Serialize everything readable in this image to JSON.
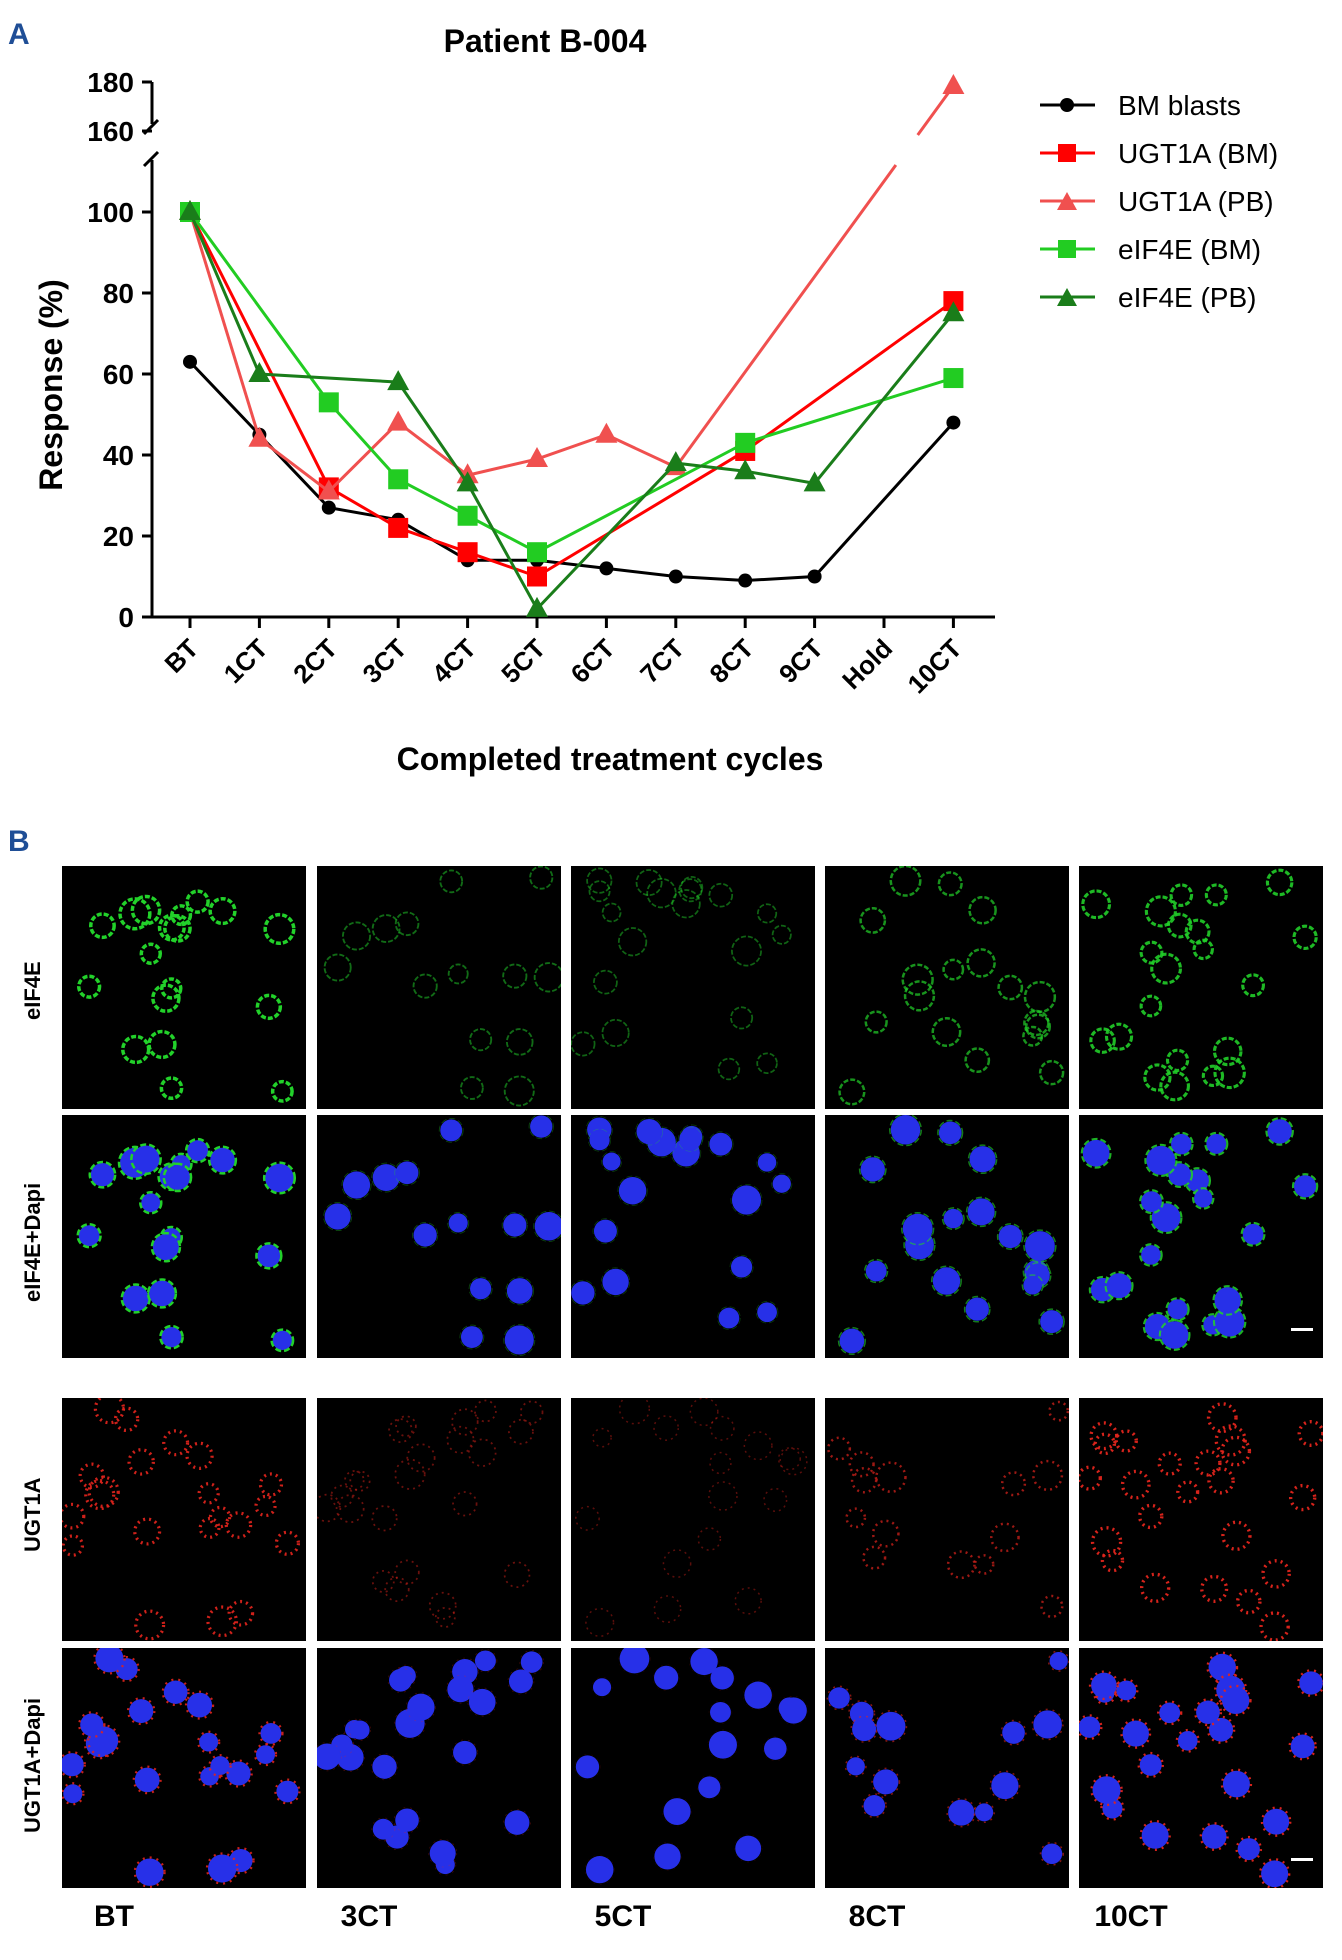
{
  "panel_a": {
    "letter": "A"
  },
  "panel_b": {
    "letter": "B",
    "row_labels": [
      "eIF4E",
      "eIF4E+Dapi",
      "UGT1A",
      "UGT1A+Dapi"
    ],
    "column_labels": [
      "BT",
      "3CT",
      "5CT",
      "8CT",
      "10CT"
    ],
    "colors": {
      "green": "#22d12a",
      "blue": "#2730e8",
      "red": "#e0241c"
    },
    "intensity": {
      "eIF4E": [
        1.0,
        0.35,
        0.3,
        0.6,
        0.85
      ],
      "UGT1A": [
        0.9,
        0.3,
        0.2,
        0.6,
        0.95
      ]
    }
  },
  "chart_data": {
    "type": "line",
    "title": "Patient B-004",
    "xlabel": "Completed treatment cycles",
    "ylabel": "Response (%)",
    "categories": [
      "BT",
      "1CT",
      "2CT",
      "3CT",
      "4CT",
      "5CT",
      "6CT",
      "7CT",
      "8CT",
      "9CT",
      "Hold",
      "10CT"
    ],
    "y_ticks_lower": [
      0,
      20,
      40,
      60,
      80,
      100
    ],
    "y_ticks_upper": [
      160,
      180
    ],
    "ylim_lower": [
      0,
      110
    ],
    "ylim_upper": [
      160,
      180
    ],
    "legend_position": "right",
    "series": [
      {
        "name": "BM blasts",
        "color": "#000000",
        "marker": "circle",
        "points": [
          [
            0,
            63
          ],
          [
            1,
            45
          ],
          [
            2,
            27
          ],
          [
            3,
            24
          ],
          [
            4,
            14
          ],
          [
            5,
            14
          ],
          [
            6,
            12
          ],
          [
            7,
            10
          ],
          [
            8,
            9
          ],
          [
            9,
            10
          ],
          [
            11,
            48
          ]
        ]
      },
      {
        "name": "UGT1A (BM)",
        "color": "#ff0000",
        "marker": "square",
        "points": [
          [
            0,
            100
          ],
          [
            2,
            32
          ],
          [
            3,
            22
          ],
          [
            4,
            16
          ],
          [
            5,
            10
          ],
          [
            8,
            41
          ],
          [
            11,
            78
          ]
        ]
      },
      {
        "name": "UGT1A (PB)",
        "color": "#f0504f",
        "marker": "triangle",
        "points": [
          [
            0,
            100
          ],
          [
            1,
            44
          ],
          [
            2,
            31
          ],
          [
            3,
            48
          ],
          [
            4,
            35
          ],
          [
            5,
            39
          ],
          [
            6,
            45
          ],
          [
            7,
            37
          ],
          [
            11,
            180
          ]
        ]
      },
      {
        "name": "eIF4E (BM)",
        "color": "#22cc22",
        "marker": "square",
        "points": [
          [
            0,
            100
          ],
          [
            2,
            53
          ],
          [
            3,
            34
          ],
          [
            4,
            25
          ],
          [
            5,
            16
          ],
          [
            8,
            43
          ],
          [
            11,
            59
          ]
        ]
      },
      {
        "name": "eIF4E (PB)",
        "color": "#1a7d1a",
        "marker": "triangle",
        "points": [
          [
            0,
            100
          ],
          [
            1,
            60
          ],
          [
            3,
            58
          ],
          [
            4,
            33
          ],
          [
            5,
            2
          ],
          [
            7,
            38
          ],
          [
            8,
            36
          ],
          [
            9,
            33
          ],
          [
            11,
            75
          ]
        ]
      }
    ]
  }
}
